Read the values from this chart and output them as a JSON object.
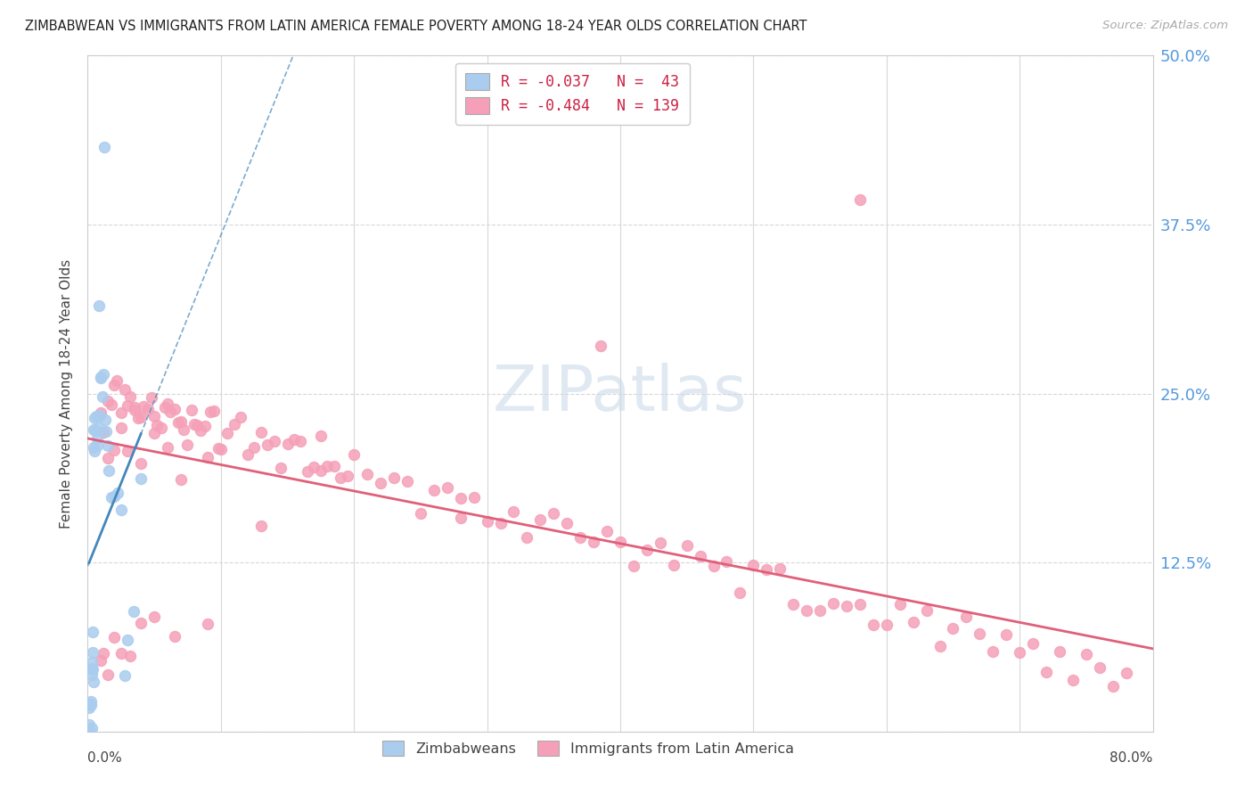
{
  "title": "ZIMBABWEAN VS IMMIGRANTS FROM LATIN AMERICA FEMALE POVERTY AMONG 18-24 YEAR OLDS CORRELATION CHART",
  "source": "Source: ZipAtlas.com",
  "ylabel": "Female Poverty Among 18-24 Year Olds",
  "ytick_vals": [
    0.0,
    0.125,
    0.25,
    0.375,
    0.5
  ],
  "ytick_labels": [
    "",
    "12.5%",
    "25.0%",
    "37.5%",
    "50.0%"
  ],
  "zim_R": -0.037,
  "zim_N": 43,
  "latam_R": -0.484,
  "latam_N": 139,
  "zim_color": "#aaccee",
  "latam_color": "#f5a0b8",
  "zim_line_color": "#4488bb",
  "latam_line_color": "#e0607a",
  "background_color": "#ffffff",
  "grid_color": "#d8d8d8",
  "xmin": 0.0,
  "xmax": 0.8,
  "ymin": 0.0,
  "ymax": 0.5,
  "zim_x": [
    0.001,
    0.001,
    0.001,
    0.002,
    0.002,
    0.002,
    0.002,
    0.003,
    0.003,
    0.003,
    0.003,
    0.004,
    0.004,
    0.004,
    0.004,
    0.005,
    0.005,
    0.005,
    0.005,
    0.006,
    0.006,
    0.007,
    0.007,
    0.008,
    0.008,
    0.009,
    0.01,
    0.01,
    0.011,
    0.012,
    0.012,
    0.013,
    0.014,
    0.015,
    0.016,
    0.018,
    0.02,
    0.022,
    0.025,
    0.028,
    0.03,
    0.035,
    0.04
  ],
  "zim_y": [
    0.0,
    0.01,
    0.01,
    0.0,
    0.01,
    0.02,
    0.02,
    0.01,
    0.04,
    0.04,
    0.05,
    0.04,
    0.05,
    0.06,
    0.07,
    0.2,
    0.21,
    0.22,
    0.23,
    0.22,
    0.23,
    0.21,
    0.22,
    0.31,
    0.23,
    0.24,
    0.26,
    0.27,
    0.24,
    0.43,
    0.26,
    0.24,
    0.22,
    0.21,
    0.2,
    0.18,
    0.17,
    0.18,
    0.16,
    0.04,
    0.07,
    0.08,
    0.18
  ],
  "latam_x": [
    0.01,
    0.012,
    0.015,
    0.018,
    0.02,
    0.022,
    0.025,
    0.028,
    0.03,
    0.032,
    0.035,
    0.038,
    0.04,
    0.042,
    0.045,
    0.048,
    0.05,
    0.052,
    0.055,
    0.058,
    0.06,
    0.062,
    0.065,
    0.068,
    0.07,
    0.072,
    0.075,
    0.078,
    0.08,
    0.082,
    0.085,
    0.088,
    0.09,
    0.092,
    0.095,
    0.098,
    0.1,
    0.105,
    0.11,
    0.115,
    0.12,
    0.125,
    0.13,
    0.135,
    0.14,
    0.145,
    0.15,
    0.155,
    0.16,
    0.165,
    0.17,
    0.175,
    0.18,
    0.185,
    0.19,
    0.195,
    0.2,
    0.21,
    0.22,
    0.23,
    0.24,
    0.25,
    0.26,
    0.27,
    0.28,
    0.29,
    0.3,
    0.31,
    0.32,
    0.33,
    0.34,
    0.35,
    0.36,
    0.37,
    0.38,
    0.39,
    0.4,
    0.41,
    0.42,
    0.43,
    0.44,
    0.45,
    0.46,
    0.47,
    0.48,
    0.49,
    0.5,
    0.51,
    0.52,
    0.53,
    0.54,
    0.55,
    0.56,
    0.57,
    0.58,
    0.59,
    0.6,
    0.61,
    0.62,
    0.63,
    0.64,
    0.65,
    0.66,
    0.67,
    0.68,
    0.69,
    0.7,
    0.71,
    0.72,
    0.73,
    0.74,
    0.75,
    0.76,
    0.77,
    0.78,
    0.015,
    0.025,
    0.035,
    0.02,
    0.03,
    0.04,
    0.05,
    0.06,
    0.07,
    0.58,
    0.385,
    0.28,
    0.175,
    0.13,
    0.09,
    0.065,
    0.05,
    0.04,
    0.032,
    0.025,
    0.02,
    0.015,
    0.012,
    0.01
  ],
  "latam_y": [
    0.24,
    0.235,
    0.25,
    0.245,
    0.25,
    0.245,
    0.24,
    0.245,
    0.238,
    0.242,
    0.248,
    0.235,
    0.24,
    0.245,
    0.238,
    0.242,
    0.245,
    0.238,
    0.23,
    0.235,
    0.232,
    0.235,
    0.228,
    0.232,
    0.235,
    0.228,
    0.222,
    0.228,
    0.232,
    0.225,
    0.22,
    0.225,
    0.218,
    0.222,
    0.225,
    0.218,
    0.215,
    0.22,
    0.215,
    0.218,
    0.212,
    0.208,
    0.212,
    0.215,
    0.208,
    0.205,
    0.21,
    0.205,
    0.2,
    0.205,
    0.198,
    0.202,
    0.198,
    0.195,
    0.2,
    0.195,
    0.192,
    0.188,
    0.185,
    0.18,
    0.178,
    0.175,
    0.172,
    0.17,
    0.168,
    0.165,
    0.162,
    0.16,
    0.158,
    0.155,
    0.152,
    0.15,
    0.148,
    0.145,
    0.142,
    0.14,
    0.138,
    0.135,
    0.132,
    0.13,
    0.128,
    0.125,
    0.122,
    0.12,
    0.118,
    0.115,
    0.112,
    0.11,
    0.108,
    0.105,
    0.102,
    0.1,
    0.098,
    0.095,
    0.092,
    0.09,
    0.088,
    0.085,
    0.082,
    0.08,
    0.078,
    0.075,
    0.072,
    0.07,
    0.068,
    0.065,
    0.062,
    0.06,
    0.058,
    0.055,
    0.052,
    0.05,
    0.048,
    0.045,
    0.042,
    0.215,
    0.22,
    0.225,
    0.2,
    0.205,
    0.21,
    0.215,
    0.205,
    0.2,
    0.385,
    0.285,
    0.175,
    0.21,
    0.155,
    0.08,
    0.08,
    0.09,
    0.07,
    0.065,
    0.06,
    0.055,
    0.05,
    0.045,
    0.04
  ]
}
